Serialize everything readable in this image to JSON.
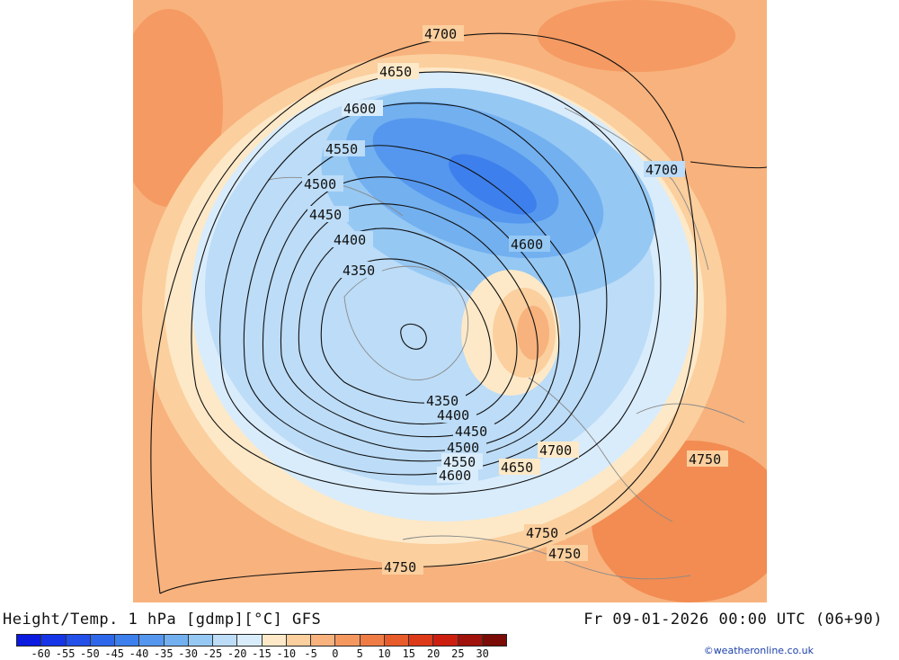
{
  "title": "Height/Temp. 1 hPa [gdmp][°C] GFS",
  "valid_time": "Fr 09-01-2026 00:00 UTC (06+90)",
  "credit": "©weatheronline.co.uk",
  "colorbar": {
    "labels": [
      "-60",
      "-55",
      "-50",
      "-45",
      "-40",
      "-35",
      "-30",
      "-25",
      "-20",
      "-15",
      "-10",
      "-5",
      "0",
      "5",
      "10",
      "15",
      "20",
      "25",
      "30"
    ],
    "colors": [
      "#0a1adf",
      "#1535e6",
      "#2250e8",
      "#2e67ea",
      "#3d7fec",
      "#5597ee",
      "#72b0f0",
      "#96c8f4",
      "#bcdcf7",
      "#d9ecfb",
      "#fde9c8",
      "#fbcf9e",
      "#f8b27d",
      "#f59860",
      "#f07c45",
      "#e85b2a",
      "#dd3a1a",
      "#cc1f10",
      "#a0120b",
      "#7a0b07"
    ]
  },
  "contour_labels": [
    "4700",
    "4650",
    "4600",
    "4550",
    "4500",
    "4450",
    "4400",
    "4350",
    "4350",
    "4400",
    "4450",
    "4500",
    "4550",
    "4600",
    "4650",
    "4700",
    "4700",
    "4600",
    "4750",
    "4750",
    "4750",
    "4750"
  ]
}
